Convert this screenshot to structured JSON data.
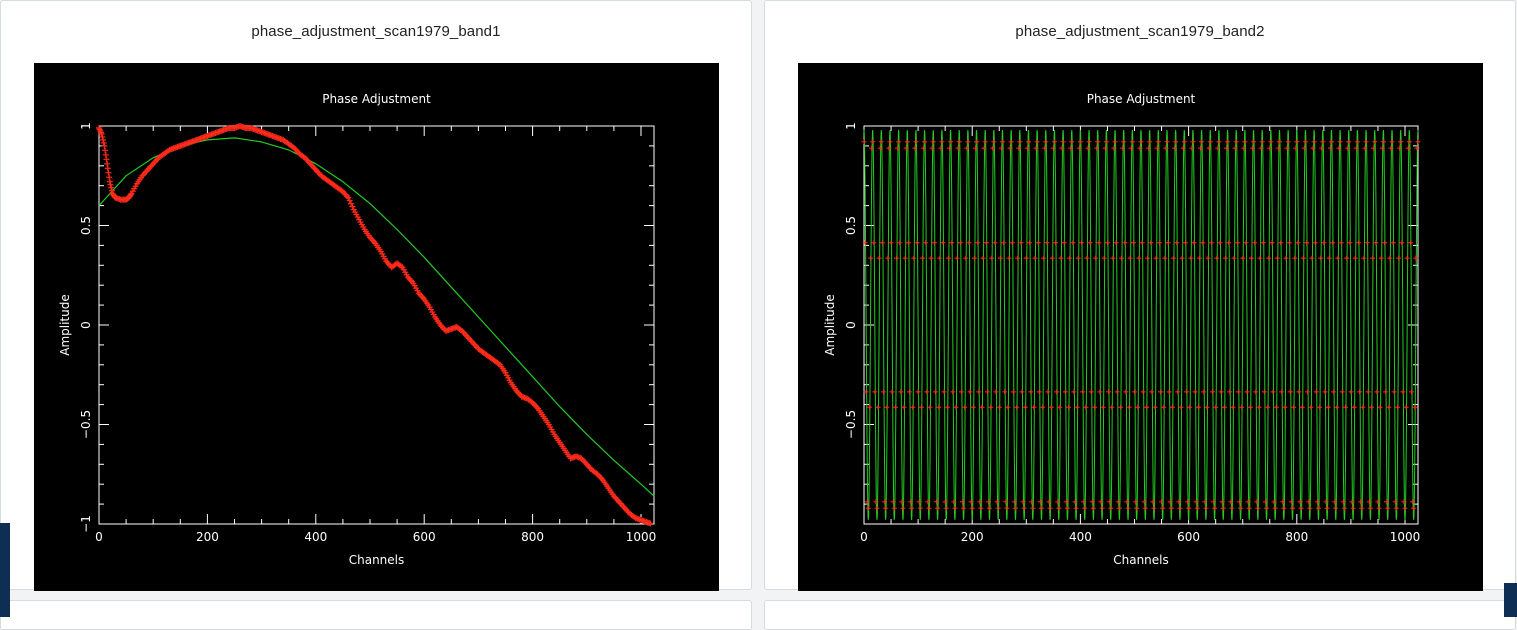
{
  "cards": [
    {
      "title": "phase_adjustment_scan1979_band1"
    },
    {
      "title": "phase_adjustment_scan1979_band2"
    }
  ],
  "colors": {
    "background": "#000000",
    "axes": "#ffffff",
    "data": "#ff2a1a",
    "fit": "#22cc22"
  },
  "chart_data": [
    {
      "type": "scatter",
      "title": "Phase Adjustment",
      "xlabel": "Channels",
      "ylabel": "Amplitude",
      "xlim": [
        0,
        1024
      ],
      "ylim": [
        -1,
        1
      ],
      "xticks": [
        "0",
        "200",
        "400",
        "600",
        "800",
        "1000"
      ],
      "yticks": [
        "−1",
        "−0.5",
        "0",
        "0.5",
        "1"
      ],
      "series": [
        {
          "kind": "measured",
          "x": [
            0,
            5,
            10,
            15,
            20,
            25,
            30,
            40,
            50,
            55,
            60,
            70,
            80,
            90,
            100,
            110,
            120,
            130,
            140,
            150,
            160,
            170,
            180,
            190,
            200,
            210,
            220,
            230,
            240,
            250,
            260,
            270,
            280,
            290,
            300,
            310,
            320,
            330,
            340,
            350,
            360,
            370,
            380,
            390,
            400,
            410,
            420,
            430,
            440,
            450,
            460,
            470,
            480,
            490,
            500,
            510,
            520,
            530,
            540,
            550,
            560,
            570,
            580,
            590,
            600,
            610,
            620,
            630,
            640,
            650,
            660,
            670,
            680,
            690,
            700,
            710,
            720,
            730,
            740,
            750,
            760,
            770,
            780,
            790,
            800,
            810,
            820,
            830,
            840,
            850,
            860,
            870,
            880,
            890,
            900,
            910,
            920,
            930,
            940,
            950,
            960,
            970,
            980,
            990,
            1000,
            1010,
            1020
          ],
          "y": [
            0.99,
            0.96,
            0.9,
            0.81,
            0.72,
            0.66,
            0.64,
            0.63,
            0.63,
            0.64,
            0.66,
            0.71,
            0.75,
            0.78,
            0.81,
            0.84,
            0.86,
            0.88,
            0.89,
            0.9,
            0.91,
            0.92,
            0.93,
            0.94,
            0.95,
            0.96,
            0.97,
            0.98,
            0.99,
            0.99,
            1.0,
            0.99,
            0.99,
            0.98,
            0.97,
            0.96,
            0.95,
            0.94,
            0.93,
            0.91,
            0.89,
            0.86,
            0.84,
            0.81,
            0.78,
            0.75,
            0.73,
            0.71,
            0.69,
            0.67,
            0.64,
            0.58,
            0.53,
            0.48,
            0.44,
            0.41,
            0.37,
            0.32,
            0.29,
            0.31,
            0.29,
            0.24,
            0.21,
            0.16,
            0.13,
            0.09,
            0.04,
            0.0,
            -0.03,
            -0.02,
            -0.01,
            -0.03,
            -0.06,
            -0.09,
            -0.12,
            -0.14,
            -0.16,
            -0.18,
            -0.2,
            -0.24,
            -0.29,
            -0.33,
            -0.36,
            -0.37,
            -0.39,
            -0.42,
            -0.46,
            -0.5,
            -0.55,
            -0.59,
            -0.63,
            -0.67,
            -0.66,
            -0.67,
            -0.7,
            -0.73,
            -0.75,
            -0.78,
            -0.82,
            -0.86,
            -0.89,
            -0.92,
            -0.95,
            -0.97,
            -0.98,
            -0.99,
            -1.0
          ]
        },
        {
          "kind": "fit",
          "x": [
            0,
            50,
            100,
            150,
            200,
            250,
            300,
            350,
            400,
            450,
            500,
            550,
            600,
            650,
            700,
            750,
            800,
            850,
            900,
            950,
            1000,
            1024
          ],
          "y": [
            0.6,
            0.75,
            0.84,
            0.9,
            0.93,
            0.94,
            0.92,
            0.88,
            0.81,
            0.72,
            0.61,
            0.48,
            0.34,
            0.19,
            0.04,
            -0.11,
            -0.26,
            -0.41,
            -0.55,
            -0.68,
            -0.8,
            -0.86
          ]
        }
      ]
    },
    {
      "type": "scatter",
      "title": "Phase Adjustment",
      "xlabel": "Channels",
      "ylabel": "Amplitude",
      "xlim": [
        0,
        1024
      ],
      "ylim": [
        -1,
        1
      ],
      "xticks": [
        "0",
        "200",
        "400",
        "600",
        "800",
        "1000"
      ],
      "yticks": [
        "−0.5",
        "0",
        "0.5",
        "1"
      ],
      "series": [
        {
          "kind": "fit",
          "function": "cos",
          "cycles": 64,
          "amplitude": 0.98
        },
        {
          "kind": "measured",
          "note_visible": false,
          "samples_per_cycle": 8
        }
      ]
    }
  ]
}
